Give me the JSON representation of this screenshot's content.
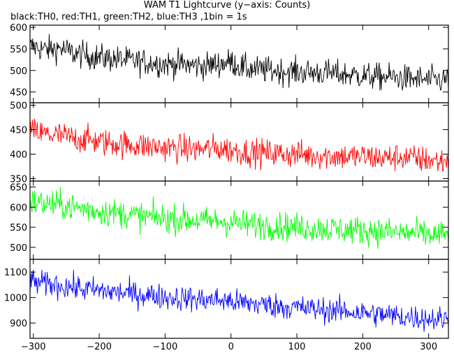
{
  "chart_data": {
    "type": "line",
    "title": "WAM T1 Lightcurve (y−axis: Counts)",
    "subtitle": "black:TH0, red:TH1, green:TH2, blue:TH3 ,1bin = 1s",
    "xlabel": "",
    "ylabel": "",
    "xlim": [
      -305,
      330
    ],
    "x_ticks": [
      -300,
      -200,
      -100,
      0,
      100,
      200,
      300
    ],
    "x_tick_labels": [
      "−300",
      "−200",
      "−100",
      "0",
      "100",
      "200",
      "300"
    ],
    "bin_size_s": 1,
    "grid": false,
    "panels": [
      {
        "name": "TH0",
        "color": "#000000",
        "ylim": [
          425,
          605
        ],
        "y_ticks": [
          450,
          500,
          550,
          600
        ],
        "x": [
          -300,
          -280,
          -260,
          -240,
          -220,
          -200,
          -180,
          -160,
          -140,
          -120,
          -100,
          -80,
          -60,
          -40,
          -20,
          0,
          20,
          40,
          60,
          80,
          100,
          120,
          140,
          160,
          180,
          200,
          220,
          240,
          260,
          280,
          300,
          320
        ],
        "values": [
          555,
          548,
          552,
          540,
          535,
          530,
          527,
          524,
          520,
          518,
          515,
          515,
          512,
          510,
          515,
          520,
          505,
          502,
          500,
          498,
          497,
          495,
          495,
          492,
          490,
          488,
          485,
          485,
          482,
          480,
          478,
          478
        ],
        "noise": 22
      },
      {
        "name": "TH1",
        "color": "#ff0000",
        "ylim": [
          345,
          505
        ],
        "y_ticks": [
          350,
          400,
          450,
          500
        ],
        "x": [
          -300,
          -280,
          -260,
          -240,
          -220,
          -200,
          -180,
          -160,
          -140,
          -120,
          -100,
          -80,
          -60,
          -40,
          -20,
          0,
          20,
          40,
          60,
          80,
          100,
          120,
          140,
          160,
          180,
          200,
          220,
          240,
          260,
          280,
          300,
          320
        ],
        "values": [
          445,
          440,
          438,
          432,
          430,
          425,
          422,
          420,
          418,
          415,
          413,
          412,
          410,
          410,
          412,
          408,
          405,
          403,
          402,
          400,
          400,
          398,
          397,
          396,
          395,
          395,
          393,
          392,
          395,
          390,
          388,
          385
        ],
        "noise": 20
      },
      {
        "name": "TH2",
        "color": "#00ff00",
        "ylim": [
          470,
          665
        ],
        "y_ticks": [
          500,
          550,
          600,
          650
        ],
        "x": [
          -300,
          -280,
          -260,
          -240,
          -220,
          -200,
          -180,
          -160,
          -140,
          -120,
          -100,
          -80,
          -60,
          -40,
          -20,
          0,
          20,
          40,
          60,
          80,
          100,
          120,
          140,
          160,
          180,
          200,
          220,
          240,
          260,
          280,
          300,
          320
        ],
        "values": [
          612,
          608,
          605,
          600,
          595,
          590,
          586,
          582,
          578,
          575,
          572,
          570,
          568,
          565,
          565,
          562,
          558,
          556,
          554,
          552,
          550,
          548,
          547,
          545,
          544,
          542,
          540,
          538,
          536,
          535,
          532,
          530
        ],
        "noise": 25
      },
      {
        "name": "TH3",
        "color": "#0000ff",
        "ylim": [
          840,
          1150
        ],
        "y_ticks": [
          900,
          1000,
          1100
        ],
        "x": [
          -300,
          -280,
          -260,
          -240,
          -220,
          -200,
          -180,
          -160,
          -140,
          -120,
          -100,
          -80,
          -60,
          -40,
          -20,
          0,
          20,
          40,
          60,
          80,
          100,
          120,
          140,
          160,
          180,
          200,
          220,
          240,
          260,
          280,
          300,
          320
        ],
        "values": [
          1060,
          1052,
          1048,
          1040,
          1032,
          1028,
          1022,
          1018,
          1012,
          1008,
          1002,
          998,
          995,
          990,
          992,
          985,
          978,
          975,
          970,
          965,
          960,
          956,
          952,
          948,
          945,
          940,
          935,
          930,
          925,
          922,
          918,
          915
        ],
        "noise": 35
      }
    ]
  }
}
